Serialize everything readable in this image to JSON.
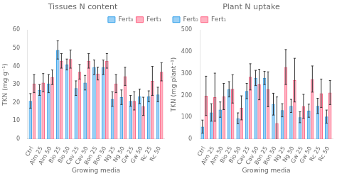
{
  "chart_data": [
    {
      "type": "bar",
      "title": "Tissues N content",
      "xlabel": "Growing media",
      "ylabel": "TKN (mg g⁻¹)",
      "categories": [
        "Ctrl",
        "Alm 25",
        "Alm 50",
        "Bio 25",
        "Bio 50",
        "Cav 25",
        "Cav 50",
        "Bon 25",
        "Bon 50",
        "Ng 25",
        "Ng 50",
        "Gw 25",
        "Gw 50",
        "Rc 25",
        "Rc 50"
      ],
      "series": [
        {
          "name": "Fert₀",
          "values": [
            21,
            27,
            30.5,
            49,
            41,
            28,
            31,
            39.5,
            39.5,
            22,
            23,
            21,
            23.5,
            23.5,
            24.5
          ],
          "errors": [
            4,
            3,
            5,
            5,
            3,
            4,
            4,
            4,
            4,
            4,
            4,
            3,
            4,
            3,
            4
          ]
        },
        {
          "name": "Fert₁",
          "values": [
            30.5,
            31,
            34,
            43,
            44,
            37,
            43,
            36,
            43,
            30.5,
            34.5,
            21,
            18,
            32,
            37
          ],
          "errors": [
            5,
            5,
            4,
            4,
            5,
            4,
            4,
            3.5,
            4,
            5,
            5,
            5,
            5,
            8,
            5
          ]
        }
      ],
      "ylim": [
        0,
        60
      ],
      "yticks": [
        0,
        10,
        20,
        30,
        40,
        50,
        60
      ],
      "grid": false,
      "legend": "upper right"
    },
    {
      "type": "bar",
      "title": "Plant N uptake",
      "xlabel": "Growing media",
      "ylabel": "TKN (mg plant⁻¹)",
      "categories": [
        "Ctrl",
        "Alm 25",
        "Alm 50",
        "Bio 25",
        "Bio 50",
        "Cav 25",
        "Cav 50",
        "Bon 25",
        "Bon 50",
        "Ng 25",
        "Ng 50",
        "Gw 25",
        "Gw 50",
        "Rc 25",
        "Rc 50"
      ],
      "series": [
        {
          "name": "Fert₀",
          "values": [
            57,
            122,
            135,
            228,
            95,
            220,
            280,
            280,
            160,
            132,
            152,
            100,
            130,
            152,
            103
          ],
          "errors": [
            30,
            40,
            35,
            35,
            25,
            35,
            35,
            30,
            50,
            30,
            30,
            25,
            30,
            35,
            30
          ]
        },
        {
          "name": "Fert₁",
          "values": [
            198,
            192,
            195,
            230,
            143,
            285,
            250,
            228,
            73,
            330,
            270,
            150,
            275,
            210,
            213
          ],
          "errors": [
            90,
            110,
            60,
            65,
            55,
            60,
            70,
            80,
            120,
            80,
            100,
            55,
            60,
            65,
            55
          ]
        }
      ],
      "ylim": [
        0,
        500
      ],
      "yticks": [
        0,
        100,
        200,
        300,
        400,
        500
      ],
      "grid": false,
      "legend": "upper left"
    }
  ]
}
